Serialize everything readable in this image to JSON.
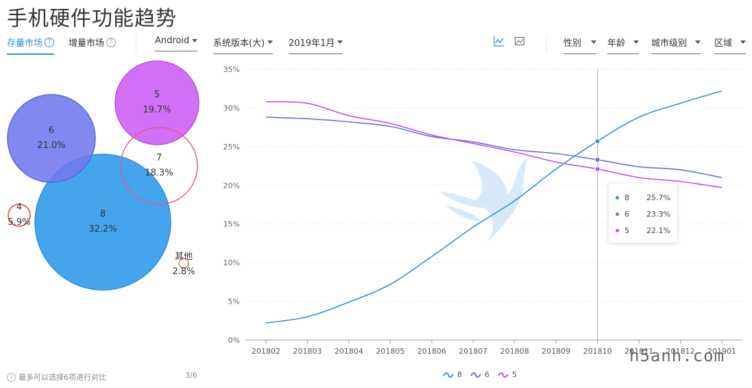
{
  "page": {
    "title": "手机硬件功能趋势"
  },
  "toolbar": {
    "tab_stock": "存量市场",
    "tab_increment": "增量市场",
    "platform": "Android",
    "system_version": "系统版本(大)",
    "month": "2019年1月",
    "filter_gender": "性别",
    "filter_age": "年龄",
    "filter_city": "城市级别",
    "filter_region": "区域"
  },
  "bubbles": [
    {
      "name": "5",
      "pct": "19.7%",
      "color": "#cc5cf5",
      "stroke": "#b84ee0",
      "filled": true
    },
    {
      "name": "6",
      "pct": "21.0%",
      "color": "#6f79ee",
      "stroke": "#5c66e0",
      "filled": true
    },
    {
      "name": "7",
      "pct": "18.3%",
      "color": "#e5588a",
      "stroke": "#e5588a",
      "filled": false
    },
    {
      "name": "8",
      "pct": "32.2%",
      "color": "#3aa0ec",
      "stroke": "#2b8fe0",
      "filled": true
    },
    {
      "name": "4",
      "pct": "5.9%",
      "color": "#e03a3a",
      "stroke": "#e03a3a",
      "filled": false
    },
    {
      "name": "其他",
      "pct": "2.8%",
      "color": "#e07a40",
      "stroke": "#e07a40",
      "filled": false
    }
  ],
  "footer": {
    "note": "最多可以选择6项进行对比",
    "page_indicator": "3/6"
  },
  "chart_data": {
    "type": "line",
    "categories": [
      "201802",
      "201803",
      "201804",
      "201805",
      "201806",
      "201807",
      "201808",
      "201809",
      "201810",
      "201811",
      "201812",
      "201901"
    ],
    "y_ticks": [
      "0%",
      "5%",
      "10%",
      "15%",
      "20%",
      "25%",
      "30%",
      "35%"
    ],
    "ylim": [
      0,
      35
    ],
    "grid": true,
    "legend_position": "bottom",
    "highlight_category": "201810",
    "series": [
      {
        "name": "8",
        "color": "#2d8ee6",
        "values": [
          2.2,
          3.0,
          4.9,
          7.2,
          10.8,
          14.6,
          18.0,
          22.1,
          25.7,
          28.8,
          30.6,
          32.2
        ]
      },
      {
        "name": "6",
        "color": "#6470e6",
        "values": [
          28.8,
          28.6,
          28.2,
          27.6,
          26.3,
          25.6,
          24.6,
          24.1,
          23.3,
          22.4,
          22.0,
          21.0
        ]
      },
      {
        "name": "5",
        "color": "#bf4ef0",
        "values": [
          30.8,
          30.6,
          29.0,
          28.0,
          26.5,
          25.4,
          24.3,
          23.0,
          22.1,
          21.0,
          20.5,
          19.7
        ]
      }
    ],
    "tooltip": [
      {
        "name": "8",
        "value": "25.7%",
        "color": "#2d8ee6"
      },
      {
        "name": "6",
        "value": "23.3%",
        "color": "#6470e6"
      },
      {
        "name": "5",
        "value": "22.1%",
        "color": "#bf4ef0"
      }
    ]
  },
  "watermark": "h5anh.com"
}
